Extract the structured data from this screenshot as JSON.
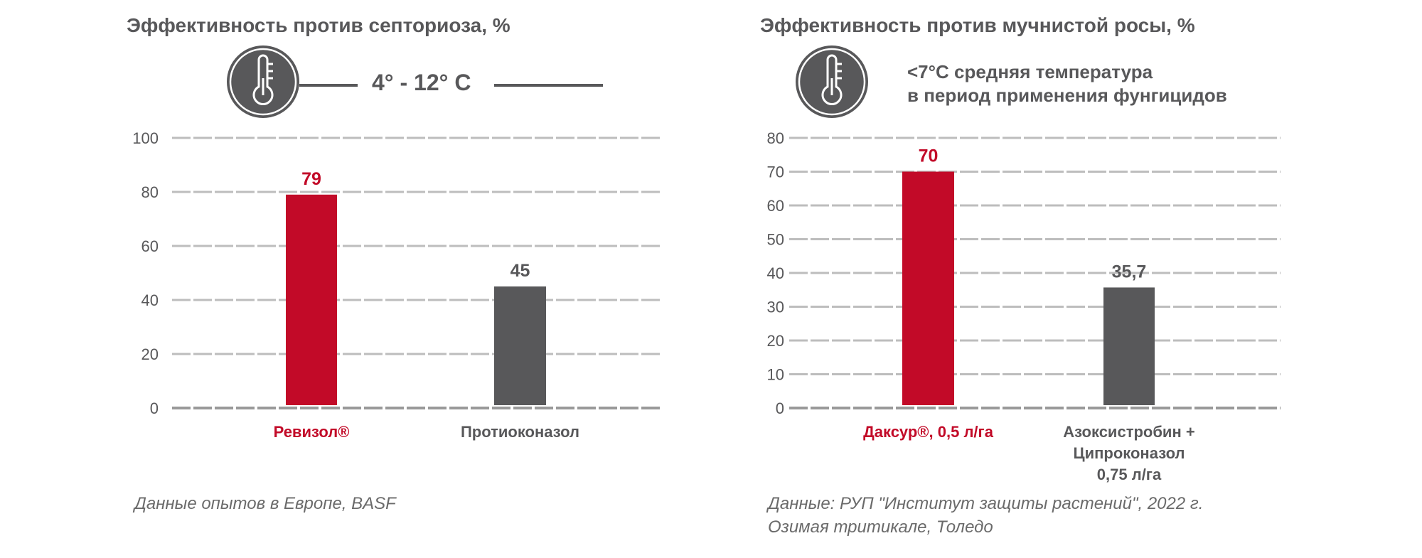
{
  "colors": {
    "highlight": "#c20a28",
    "neutral": "#58585a",
    "grid": "#bdbdbd",
    "text": "#58585a"
  },
  "chart_data": [
    {
      "type": "bar",
      "title": "Эффективность против септориоза, %",
      "condition": {
        "icon": "thermometer-icon",
        "lines": [
          "4° - 12° C"
        ]
      },
      "categories": [
        "Ревизол®",
        "Протиоконазол"
      ],
      "category_lines": [
        [
          "Ревизол®"
        ],
        [
          "Протиоконазол"
        ]
      ],
      "values": [
        79,
        45
      ],
      "value_labels": [
        "79",
        "45"
      ],
      "bar_colors": [
        "#c20a28",
        "#58585a"
      ],
      "label_colors": [
        "#c20a28",
        "#58585a"
      ],
      "ylim": [
        0,
        100
      ],
      "yticks": [
        0,
        20,
        40,
        60,
        80,
        100
      ],
      "grid": true,
      "footnote": [
        "Данные опытов в Европе, BASF"
      ]
    },
    {
      "type": "bar",
      "title": "Эффективность против мучнистой росы, %",
      "condition": {
        "icon": "thermometer-icon",
        "lines": [
          "<7°С средняя температура",
          "в период применения фунгицидов"
        ]
      },
      "categories": [
        "Даксур®, 0,5 л/га",
        "Азоксистробин + Ципроконазол 0,75 л/га"
      ],
      "category_lines": [
        [
          "Даксур®, 0,5 л/га"
        ],
        [
          "Азоксистробин +",
          "Ципроконазол",
          "0,75 л/га"
        ]
      ],
      "values": [
        70,
        35.7
      ],
      "value_labels": [
        "70",
        "35,7"
      ],
      "bar_colors": [
        "#c20a28",
        "#58585a"
      ],
      "label_colors": [
        "#c20a28",
        "#58585a"
      ],
      "ylim": [
        0,
        80
      ],
      "yticks": [
        0,
        10,
        20,
        30,
        40,
        50,
        60,
        70,
        80
      ],
      "grid": true,
      "footnote": [
        "Данные: РУП \"Институт защиты растений\", 2022 г.",
        "Озимая тритикале, Толедо"
      ]
    }
  ]
}
